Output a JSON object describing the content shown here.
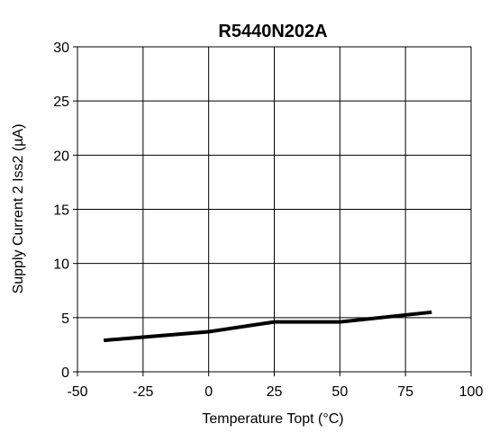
{
  "chart_data": {
    "type": "line",
    "title": "R5440N202A",
    "xlabel": "Temperature Topt (°C)",
    "ylabel": "Supply Current 2 Iss2 (µA)",
    "xlim": [
      -50,
      100
    ],
    "ylim": [
      0,
      30
    ],
    "x_ticks": [
      -50,
      -25,
      0,
      25,
      50,
      75,
      100
    ],
    "y_ticks": [
      0,
      5,
      10,
      15,
      20,
      25,
      30
    ],
    "x_tick_labels": [
      "-50",
      "-25",
      "0",
      "25",
      "50",
      "75",
      "100"
    ],
    "y_tick_labels": [
      "0",
      "5",
      "10",
      "15",
      "20",
      "25",
      "30"
    ],
    "grid": true,
    "legend": "none",
    "line_color": "#000000",
    "series": [
      {
        "x": [
          -40,
          0,
          25,
          50,
          85
        ],
        "y": [
          2.9,
          3.7,
          4.6,
          4.6,
          5.5
        ]
      }
    ]
  }
}
